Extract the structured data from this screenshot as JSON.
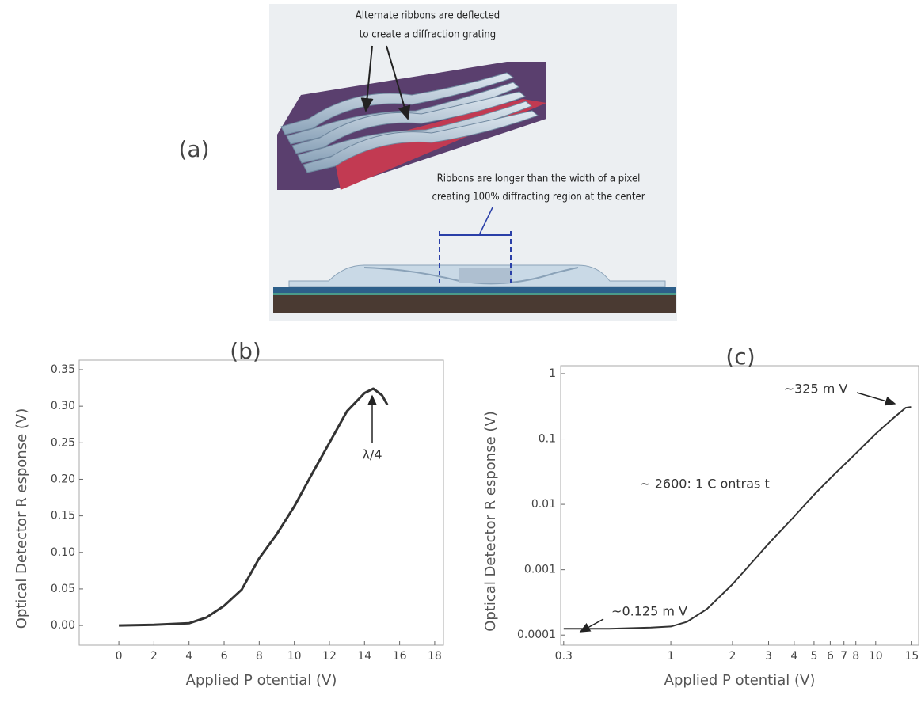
{
  "figure": {
    "panel_label": "(a)",
    "callout_top": [
      "Alternate ribbons are deflected",
      "to create a diffraction grating"
    ],
    "callout_bottom": [
      "Ribbons are longer than the width of a pixel",
      "creating 100% diffracting region at the center"
    ]
  },
  "chart_data": [
    {
      "type": "line",
      "title": "(b)",
      "xlabel": "Applied P otential  (V)",
      "ylabel": "Optical Detector R esponse (V)",
      "x": [
        0,
        2,
        4,
        5,
        6,
        7,
        8,
        9,
        10,
        11,
        12,
        13,
        14,
        14.5,
        15,
        15.3
      ],
      "values": [
        0.0,
        0.001,
        0.003,
        0.011,
        0.027,
        0.049,
        0.092,
        0.125,
        0.163,
        0.207,
        0.25,
        0.293,
        0.318,
        0.324,
        0.315,
        0.302
      ],
      "color": "#333333",
      "xlim": [
        -2.26,
        18.5
      ],
      "ylim": [
        -0.027,
        0.363
      ],
      "xticks": [
        0,
        2,
        4,
        6,
        8,
        10,
        12,
        14,
        16,
        18
      ],
      "yticks": [
        {
          "value": 0,
          "label": "0.00"
        },
        0.05,
        {
          "value": 0.1,
          "label": "0.10"
        },
        0.15,
        {
          "value": 0.2,
          "label": "0.20"
        },
        0.25,
        {
          "value": 0.3,
          "label": "0.30"
        },
        0.35
      ],
      "annotations": [
        "λ/4"
      ]
    },
    {
      "type": "line",
      "title": "(c)",
      "xlabel": "Applied P otential (V)",
      "ylabel": "Optical Detector R esponse (V)",
      "x": [
        0.3,
        0.5,
        0.8,
        1,
        1.2,
        1.5,
        2,
        3,
        4,
        5,
        6,
        8,
        10,
        12,
        14,
        15
      ],
      "values": [
        0.000125,
        0.000125,
        0.00013,
        0.000135,
        0.00016,
        0.00025,
        0.0006,
        0.0025,
        0.0065,
        0.014,
        0.025,
        0.06,
        0.12,
        0.2,
        0.3,
        0.31
      ],
      "color": "#333333",
      "log_x": true,
      "log_y": true,
      "xlim": [
        0.29,
        16.2
      ],
      "ylim": [
        7e-05,
        1.32
      ],
      "xticks": [
        0.3,
        1,
        2,
        3,
        4,
        5,
        6,
        7,
        8,
        10,
        15
      ],
      "yticks": [
        1,
        0.1,
        0.01,
        0.001,
        0.0001
      ],
      "annotations": [
        "~325 m V",
        "~ 2600: 1 C ontras t",
        "~0.125 m V"
      ]
    }
  ]
}
